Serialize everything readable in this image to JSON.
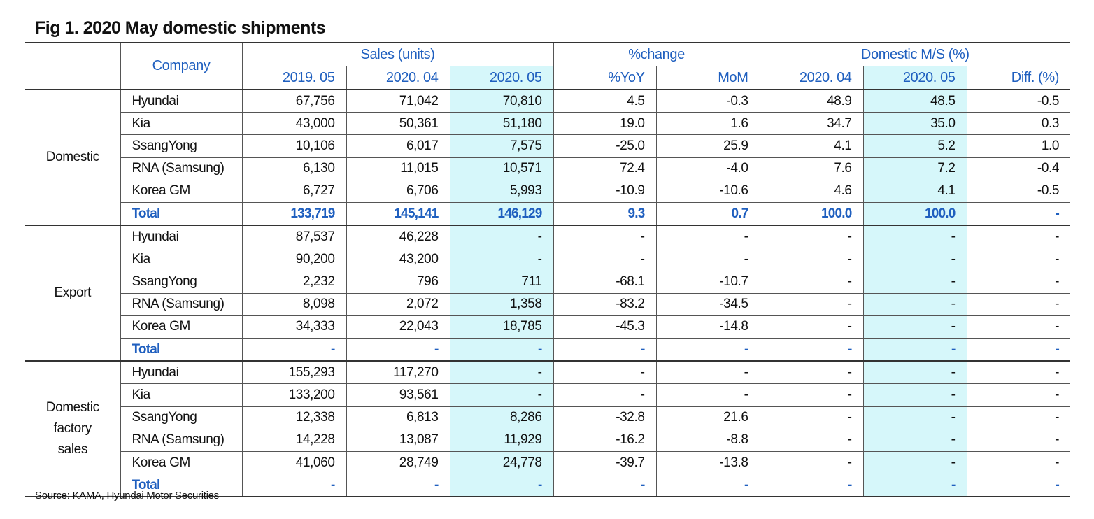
{
  "title": "Fig 1. 2020 May domestic shipments",
  "source": "Source: KAMA, Hyundai Motor Securities",
  "chart_data": {
    "type": "table",
    "header": {
      "company": "Company",
      "groups": [
        "Sales (units)",
        "%change",
        "Domestic M/S (%)"
      ],
      "columns": [
        "2019. 05",
        "2020. 04",
        "2020. 05",
        "%YoY",
        "MoM",
        "2020. 04",
        "2020. 05",
        "Diff. (%)"
      ]
    },
    "sections": [
      {
        "category": "Domestic",
        "rows": [
          {
            "company": "Hyundai",
            "values": [
              "67,756",
              "71,042",
              "70,810",
              "4.5",
              "-0.3",
              "48.9",
              "48.5",
              "-0.5"
            ]
          },
          {
            "company": "Kia",
            "values": [
              "43,000",
              "50,361",
              "51,180",
              "19.0",
              "1.6",
              "34.7",
              "35.0",
              "0.3"
            ]
          },
          {
            "company": "SsangYong",
            "values": [
              "10,106",
              "6,017",
              "7,575",
              "-25.0",
              "25.9",
              "4.1",
              "5.2",
              "1.0"
            ]
          },
          {
            "company": "RNA (Samsung)",
            "values": [
              "6,130",
              "11,015",
              "10,571",
              "72.4",
              "-4.0",
              "7.6",
              "7.2",
              "-0.4"
            ]
          },
          {
            "company": "Korea GM",
            "values": [
              "6,727",
              "6,706",
              "5,993",
              "-10.9",
              "-10.6",
              "4.6",
              "4.1",
              "-0.5"
            ]
          },
          {
            "company": "Total",
            "values": [
              "133,719",
              "145,141",
              "146,129",
              "9.3",
              "0.7",
              "100.0",
              "100.0",
              "-"
            ]
          }
        ]
      },
      {
        "category": "Export",
        "rows": [
          {
            "company": "Hyundai",
            "values": [
              "87,537",
              "46,228",
              "-",
              "-",
              "-",
              "-",
              "-",
              "-"
            ]
          },
          {
            "company": "Kia",
            "values": [
              "90,200",
              "43,200",
              "-",
              "-",
              "-",
              "-",
              "-",
              "-"
            ]
          },
          {
            "company": "SsangYong",
            "values": [
              "2,232",
              "796",
              "711",
              "-68.1",
              "-10.7",
              "-",
              "-",
              "-"
            ]
          },
          {
            "company": "RNA (Samsung)",
            "values": [
              "8,098",
              "2,072",
              "1,358",
              "-83.2",
              "-34.5",
              "-",
              "-",
              "-"
            ]
          },
          {
            "company": "Korea GM",
            "values": [
              "34,333",
              "22,043",
              "18,785",
              "-45.3",
              "-14.8",
              "-",
              "-",
              "-"
            ]
          },
          {
            "company": "Total",
            "values": [
              "-",
              "-",
              "-",
              "-",
              "-",
              "-",
              "-",
              "-"
            ]
          }
        ]
      },
      {
        "category": "Domestic factory sales",
        "rows": [
          {
            "company": "Hyundai",
            "values": [
              "155,293",
              "117,270",
              "-",
              "-",
              "-",
              "-",
              "-",
              "-"
            ]
          },
          {
            "company": "Kia",
            "values": [
              "133,200",
              "93,561",
              "-",
              "-",
              "-",
              "-",
              "-",
              "-"
            ]
          },
          {
            "company": "SsangYong",
            "values": [
              "12,338",
              "6,813",
              "8,286",
              "-32.8",
              "21.6",
              "-",
              "-",
              "-"
            ]
          },
          {
            "company": "RNA (Samsung)",
            "values": [
              "14,228",
              "13,087",
              "11,929",
              "-16.2",
              "-8.8",
              "-",
              "-",
              "-"
            ]
          },
          {
            "company": "Korea GM",
            "values": [
              "41,060",
              "28,749",
              "24,778",
              "-39.7",
              "-13.8",
              "-",
              "-",
              "-"
            ]
          },
          {
            "company": "Total",
            "values": [
              "-",
              "-",
              "-",
              "-",
              "-",
              "-",
              "-",
              "-"
            ]
          }
        ]
      }
    ]
  },
  "colors": {
    "accent": "#1f5fbf",
    "highlight": "#d6f7fa",
    "rule": "#333333"
  }
}
